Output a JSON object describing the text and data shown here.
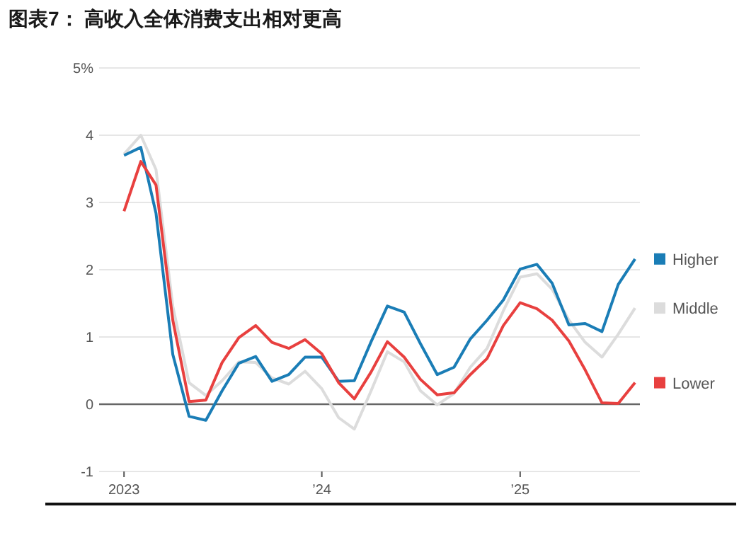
{
  "chart_data": {
    "type": "line",
    "title": "图表7：  高收入全体消费支出相对更高",
    "x": [
      "2023-01",
      "2023-02",
      "2023-03",
      "2023-04",
      "2023-05",
      "2023-06",
      "2023-07",
      "2023-08",
      "2023-09",
      "2023-10",
      "2023-11",
      "2023-12",
      "2024-01",
      "2024-02",
      "2024-03",
      "2024-04",
      "2024-05",
      "2024-06",
      "2024-07",
      "2024-08",
      "2024-09",
      "2024-10",
      "2024-11",
      "2024-12",
      "2025-01",
      "2025-02",
      "2025-03",
      "2025-04",
      "2025-05",
      "2025-06",
      "2025-07",
      "2025-08"
    ],
    "series": [
      {
        "name": "Higher",
        "color": "#1a7db6",
        "values": [
          3.7,
          3.82,
          2.84,
          0.74,
          -0.18,
          -0.24,
          0.2,
          0.61,
          0.71,
          0.34,
          0.44,
          0.7,
          0.7,
          0.34,
          0.35,
          0.93,
          1.46,
          1.37,
          0.9,
          0.44,
          0.55,
          0.97,
          1.25,
          1.55,
          2.01,
          2.08,
          1.8,
          1.18,
          1.2,
          1.08,
          1.78,
          2.16
        ]
      },
      {
        "name": "Middle",
        "color": "#dcdcdc",
        "values": [
          3.72,
          4.0,
          3.49,
          1.46,
          0.32,
          0.13,
          0.35,
          0.63,
          0.62,
          0.39,
          0.3,
          0.49,
          0.23,
          -0.2,
          -0.37,
          0.2,
          0.78,
          0.63,
          0.2,
          -0.01,
          0.16,
          0.55,
          0.83,
          1.39,
          1.89,
          1.94,
          1.71,
          1.25,
          0.92,
          0.7,
          1.04,
          1.43
        ]
      },
      {
        "name": "Lower",
        "color": "#e8403f",
        "values": [
          2.87,
          3.61,
          3.26,
          1.25,
          0.04,
          0.06,
          0.62,
          0.99,
          1.17,
          0.92,
          0.83,
          0.96,
          0.75,
          0.32,
          0.08,
          0.48,
          0.93,
          0.7,
          0.37,
          0.14,
          0.17,
          0.44,
          0.68,
          1.17,
          1.51,
          1.42,
          1.25,
          0.94,
          0.51,
          0.02,
          0.01,
          0.32
        ]
      }
    ],
    "xlim": [
      "2022-11-16",
      "2025-08-10"
    ],
    "xticks": [
      {
        "value": "2023-01",
        "label": "2023"
      },
      {
        "value": "2024-01",
        "label": "’24"
      },
      {
        "value": "2025-01",
        "label": "’25"
      }
    ],
    "ylim": [
      -1,
      5
    ],
    "yticks": [
      {
        "value": 5,
        "label": "5%"
      },
      4,
      3,
      2,
      1,
      0,
      -1
    ],
    "grid": "y",
    "legend": "right",
    "marker": "none",
    "line_style": "solid",
    "ref_lines": [
      {
        "axis": "y",
        "value": 0,
        "color": "#666666"
      }
    ]
  }
}
